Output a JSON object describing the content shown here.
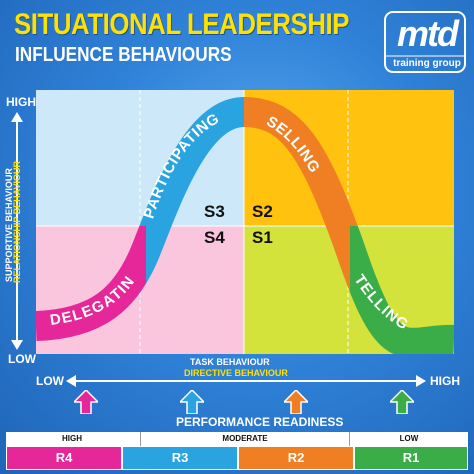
{
  "header": {
    "title": "SITUATIONAL LEADERSHIP",
    "subtitle": "INFLUENCE BEHAVIOURS"
  },
  "logo": {
    "brand": "mtd",
    "tagline": "training group"
  },
  "y_axis": {
    "high": "HIGH",
    "low": "LOW",
    "label_primary": "SUPPORTIVE BEHAVIOUR",
    "label_secondary": "RELATIONSHIP BEHAVIOUR"
  },
  "x_axis": {
    "low": "LOW",
    "high": "HIGH",
    "label_primary": "TASK BEHAVIOUR",
    "label_secondary": "DIRECTIVE BEHAVIOUR"
  },
  "curve_labels": {
    "delegating": "DELEGATING",
    "participating": "PARTICIPATING",
    "selling": "SELLING",
    "telling": "TELLING"
  },
  "stages": {
    "s3": "S3",
    "s2": "S2",
    "s4": "S4",
    "s1": "S1"
  },
  "performance_readiness": {
    "label": "PERFORMANCE READINESS",
    "headers": {
      "high": "HIGH",
      "moderate": "MODERATE",
      "low": "LOW"
    },
    "levels": [
      "R4",
      "R3",
      "R2",
      "R1"
    ]
  },
  "colors": {
    "yellow": "#ffe100",
    "pink": "#e5279a",
    "blue": "#2aa4e0",
    "orange": "#f07f23",
    "green": "#3aac48"
  },
  "icons": [
    "up-arrow-icon",
    "double-arrow-icon"
  ]
}
